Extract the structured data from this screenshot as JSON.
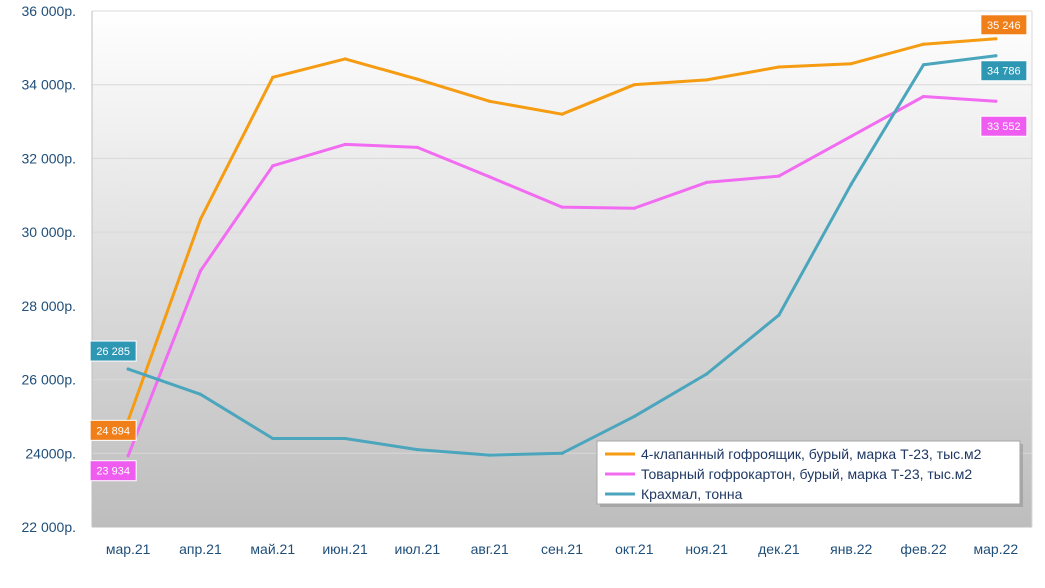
{
  "chart_data": {
    "type": "line",
    "title": "",
    "xlabel": "",
    "ylabel": "",
    "categories": [
      "мар.21",
      "апр.21",
      "май.21",
      "июн.21",
      "июл.21",
      "авг.21",
      "сен.21",
      "окт.21",
      "ноя.21",
      "дек.21",
      "янв.22",
      "фев.22",
      "мар.22"
    ],
    "ylim": [
      22000,
      36000
    ],
    "yticks": [
      22000,
      24000,
      26000,
      28000,
      30000,
      32000,
      34000,
      36000
    ],
    "ytick_labels": [
      "22 000р.",
      "24000р.",
      "26 000р.",
      "28 000р.",
      "30 000р.",
      "32 000р.",
      "34 000р.",
      "36 000р."
    ],
    "grid": true,
    "legend_position": "bottom-right",
    "series": [
      {
        "name": "4-клапанный гофроящик, бурый, марка Т-23, тыс.м2",
        "color": "#f59c12",
        "values": [
          24894,
          30350,
          34200,
          34700,
          34150,
          33550,
          33200,
          34000,
          34130,
          34480,
          34570,
          35100,
          35246
        ]
      },
      {
        "name": "Товарный гофрокартон, бурый, марка Т-23, тыс.м2",
        "color": "#f26cf2",
        "values": [
          23934,
          28950,
          31800,
          32380,
          32300,
          31500,
          30680,
          30650,
          31350,
          31520,
          32600,
          33680,
          33552
        ]
      },
      {
        "name": "Крахмал, тонна",
        "color": "#4ba6bd",
        "values": [
          26285,
          25600,
          24400,
          24400,
          24100,
          23950,
          24000,
          25000,
          26150,
          27750,
          31300,
          34540,
          34786
        ]
      }
    ],
    "data_labels": [
      {
        "series": 0,
        "index": 0,
        "text": "24 894",
        "color": "#f07f19"
      },
      {
        "series": 0,
        "index": 12,
        "text": "35 246",
        "color": "#f07f19"
      },
      {
        "series": 1,
        "index": 0,
        "text": "23 934",
        "color": "#ee5cf0"
      },
      {
        "series": 1,
        "index": 12,
        "text": "33 552",
        "color": "#ee5cf0"
      },
      {
        "series": 2,
        "index": 0,
        "text": "26 285",
        "color": "#2e97b3"
      },
      {
        "series": 2,
        "index": 12,
        "text": "34 786",
        "color": "#2e97b3"
      }
    ]
  }
}
